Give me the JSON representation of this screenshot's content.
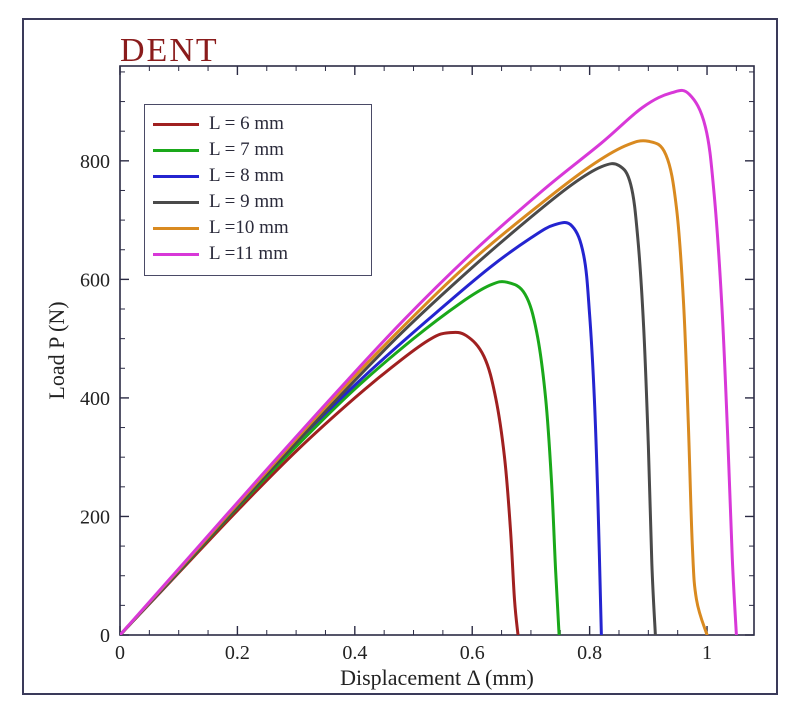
{
  "chart": {
    "type": "line",
    "title": "DENT",
    "title_color": "#8a1c1c",
    "title_fontsize": 34,
    "frame_color": "#3a3a5a",
    "background_color": "#ffffff",
    "axis_color": "#2b2b44",
    "tick_fontsize": 20,
    "label_fontsize": 22,
    "line_width": 3,
    "xlabel": "Displacement Δ (mm)",
    "ylabel": "Load P (N)",
    "xlim": [
      0,
      1.08
    ],
    "ylim": [
      0,
      960
    ],
    "xticks": [
      0,
      0.2,
      0.4,
      0.6,
      0.8,
      1.0
    ],
    "xtick_labels": [
      "0",
      "0.2",
      "0.4",
      "0.6",
      "0.8",
      "1"
    ],
    "yticks": [
      0,
      200,
      400,
      600,
      800
    ],
    "ytick_labels": [
      "0",
      "200",
      "400",
      "600",
      "800"
    ],
    "tick_len_major": 9,
    "tick_len_minor": 5,
    "x_minor_step": 0.05,
    "y_minor_step": 50,
    "legend": {
      "border_color": "#4a4a66",
      "fontsize": 19
    },
    "series": [
      {
        "label": "L = 6 mm",
        "color": "#a02020",
        "points": [
          [
            0.0,
            0
          ],
          [
            0.1,
            105
          ],
          [
            0.2,
            210
          ],
          [
            0.3,
            310
          ],
          [
            0.4,
            400
          ],
          [
            0.48,
            465
          ],
          [
            0.53,
            500
          ],
          [
            0.56,
            510
          ],
          [
            0.59,
            505
          ],
          [
            0.62,
            470
          ],
          [
            0.64,
            400
          ],
          [
            0.655,
            300
          ],
          [
            0.665,
            180
          ],
          [
            0.672,
            60
          ],
          [
            0.678,
            0
          ]
        ]
      },
      {
        "label": "L = 7 mm",
        "color": "#1aa81a",
        "points": [
          [
            0.0,
            0
          ],
          [
            0.1,
            107
          ],
          [
            0.2,
            215
          ],
          [
            0.3,
            318
          ],
          [
            0.4,
            415
          ],
          [
            0.5,
            500
          ],
          [
            0.58,
            560
          ],
          [
            0.63,
            590
          ],
          [
            0.66,
            595
          ],
          [
            0.69,
            575
          ],
          [
            0.71,
            510
          ],
          [
            0.725,
            400
          ],
          [
            0.735,
            260
          ],
          [
            0.742,
            110
          ],
          [
            0.748,
            0
          ]
        ]
      },
      {
        "label": "L = 8 mm",
        "color": "#2424d0",
        "points": [
          [
            0.0,
            0
          ],
          [
            0.1,
            108
          ],
          [
            0.2,
            218
          ],
          [
            0.3,
            325
          ],
          [
            0.42,
            440
          ],
          [
            0.54,
            545
          ],
          [
            0.63,
            620
          ],
          [
            0.7,
            670
          ],
          [
            0.74,
            692
          ],
          [
            0.77,
            690
          ],
          [
            0.79,
            640
          ],
          [
            0.8,
            540
          ],
          [
            0.808,
            400
          ],
          [
            0.814,
            230
          ],
          [
            0.82,
            0
          ]
        ]
      },
      {
        "label": "L = 9 mm",
        "color": "#4a4a4a",
        "points": [
          [
            0.0,
            0
          ],
          [
            0.12,
            130
          ],
          [
            0.24,
            260
          ],
          [
            0.36,
            388
          ],
          [
            0.48,
            510
          ],
          [
            0.6,
            620
          ],
          [
            0.7,
            705
          ],
          [
            0.77,
            760
          ],
          [
            0.82,
            790
          ],
          [
            0.85,
            792
          ],
          [
            0.87,
            760
          ],
          [
            0.882,
            670
          ],
          [
            0.892,
            520
          ],
          [
            0.9,
            320
          ],
          [
            0.906,
            120
          ],
          [
            0.912,
            0
          ]
        ]
      },
      {
        "label": "L =10 mm",
        "color": "#d98a20",
        "points": [
          [
            0.0,
            0
          ],
          [
            0.12,
            132
          ],
          [
            0.24,
            265
          ],
          [
            0.36,
            395
          ],
          [
            0.48,
            518
          ],
          [
            0.6,
            632
          ],
          [
            0.72,
            730
          ],
          [
            0.8,
            790
          ],
          [
            0.86,
            825
          ],
          [
            0.9,
            833
          ],
          [
            0.93,
            810
          ],
          [
            0.948,
            720
          ],
          [
            0.96,
            560
          ],
          [
            0.968,
            360
          ],
          [
            0.975,
            150
          ],
          [
            0.982,
            60
          ],
          [
            1.0,
            0
          ]
        ]
      },
      {
        "label": "L =11 mm",
        "color": "#d838d8",
        "points": [
          [
            0.0,
            0
          ],
          [
            0.12,
            134
          ],
          [
            0.24,
            268
          ],
          [
            0.36,
            400
          ],
          [
            0.48,
            528
          ],
          [
            0.6,
            645
          ],
          [
            0.72,
            750
          ],
          [
            0.82,
            830
          ],
          [
            0.89,
            890
          ],
          [
            0.94,
            915
          ],
          [
            0.97,
            912
          ],
          [
            0.997,
            858
          ],
          [
            1.012,
            745
          ],
          [
            1.025,
            560
          ],
          [
            1.035,
            340
          ],
          [
            1.043,
            130
          ],
          [
            1.05,
            0
          ]
        ]
      }
    ]
  }
}
